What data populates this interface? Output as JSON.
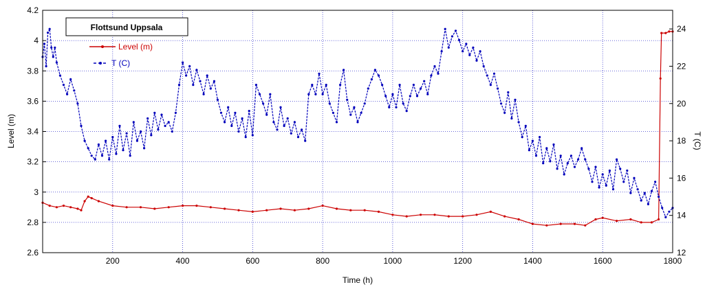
{
  "chart_data": {
    "type": "line",
    "title": "",
    "legend_title": "Flottsund Uppsala",
    "legend_position": "top-left",
    "grid": true,
    "xlabel": "Time (h)",
    "ylabel": "Level (m)",
    "y2label": "T (C)",
    "xlim": [
      0,
      1800
    ],
    "ylim": [
      2.6,
      4.2
    ],
    "y2lim": [
      12,
      25
    ],
    "x_ticks": [
      "200",
      "400",
      "600",
      "800",
      "1000",
      "1200",
      "1400",
      "1600",
      "1800"
    ],
    "y_ticks": [
      "2.6",
      "2.8",
      "3",
      "3.2",
      "3.4",
      "3.6",
      "3.8",
      "4",
      "4.2"
    ],
    "y2_ticks": [
      "12",
      "14",
      "16",
      "18",
      "20",
      "22",
      "24"
    ],
    "series": [
      {
        "name": "Level (m)",
        "axis": "left",
        "color": "#cc0000",
        "marker": "dot",
        "points": [
          [
            0,
            2.93
          ],
          [
            20,
            2.91
          ],
          [
            40,
            2.9
          ],
          [
            60,
            2.91
          ],
          [
            80,
            2.9
          ],
          [
            100,
            2.89
          ],
          [
            110,
            2.88
          ],
          [
            120,
            2.94
          ],
          [
            130,
            2.97
          ],
          [
            140,
            2.96
          ],
          [
            160,
            2.94
          ],
          [
            200,
            2.91
          ],
          [
            240,
            2.9
          ],
          [
            280,
            2.9
          ],
          [
            320,
            2.89
          ],
          [
            360,
            2.9
          ],
          [
            400,
            2.91
          ],
          [
            440,
            2.91
          ],
          [
            480,
            2.9
          ],
          [
            520,
            2.89
          ],
          [
            560,
            2.88
          ],
          [
            600,
            2.87
          ],
          [
            640,
            2.88
          ],
          [
            680,
            2.89
          ],
          [
            720,
            2.88
          ],
          [
            760,
            2.89
          ],
          [
            800,
            2.91
          ],
          [
            840,
            2.89
          ],
          [
            880,
            2.88
          ],
          [
            920,
            2.88
          ],
          [
            960,
            2.87
          ],
          [
            1000,
            2.85
          ],
          [
            1040,
            2.84
          ],
          [
            1080,
            2.85
          ],
          [
            1120,
            2.85
          ],
          [
            1160,
            2.84
          ],
          [
            1200,
            2.84
          ],
          [
            1240,
            2.85
          ],
          [
            1280,
            2.87
          ],
          [
            1320,
            2.84
          ],
          [
            1360,
            2.82
          ],
          [
            1400,
            2.79
          ],
          [
            1440,
            2.78
          ],
          [
            1480,
            2.79
          ],
          [
            1520,
            2.79
          ],
          [
            1550,
            2.78
          ],
          [
            1580,
            2.82
          ],
          [
            1600,
            2.83
          ],
          [
            1640,
            2.81
          ],
          [
            1680,
            2.82
          ],
          [
            1710,
            2.8
          ],
          [
            1740,
            2.8
          ],
          [
            1760,
            2.82
          ],
          [
            1765,
            3.75
          ],
          [
            1768,
            4.05
          ],
          [
            1780,
            4.05
          ],
          [
            1790,
            4.06
          ],
          [
            1800,
            4.06
          ]
        ]
      },
      {
        "name": "T (C)",
        "axis": "right",
        "color": "#0000bb",
        "marker": "dot",
        "points": [
          [
            0,
            22.5
          ],
          [
            5,
            23.2
          ],
          [
            10,
            22.0
          ],
          [
            15,
            23.8
          ],
          [
            20,
            24.0
          ],
          [
            25,
            23.0
          ],
          [
            30,
            22.5
          ],
          [
            35,
            23.0
          ],
          [
            40,
            22.2
          ],
          [
            50,
            21.5
          ],
          [
            60,
            21.0
          ],
          [
            70,
            20.5
          ],
          [
            80,
            21.3
          ],
          [
            90,
            20.7
          ],
          [
            100,
            20.0
          ],
          [
            110,
            18.8
          ],
          [
            120,
            18.0
          ],
          [
            130,
            17.6
          ],
          [
            140,
            17.2
          ],
          [
            150,
            17.0
          ],
          [
            160,
            17.8
          ],
          [
            170,
            17.2
          ],
          [
            180,
            18.0
          ],
          [
            190,
            17.0
          ],
          [
            200,
            18.2
          ],
          [
            210,
            17.3
          ],
          [
            220,
            18.8
          ],
          [
            230,
            17.5
          ],
          [
            240,
            18.4
          ],
          [
            250,
            17.2
          ],
          [
            260,
            19.0
          ],
          [
            270,
            18.0
          ],
          [
            280,
            18.5
          ],
          [
            290,
            17.6
          ],
          [
            300,
            19.2
          ],
          [
            310,
            18.3
          ],
          [
            320,
            19.5
          ],
          [
            330,
            18.6
          ],
          [
            340,
            19.4
          ],
          [
            350,
            18.8
          ],
          [
            360,
            19.0
          ],
          [
            370,
            18.5
          ],
          [
            380,
            19.5
          ],
          [
            390,
            21.0
          ],
          [
            400,
            22.2
          ],
          [
            410,
            21.5
          ],
          [
            420,
            22.0
          ],
          [
            430,
            21.0
          ],
          [
            440,
            21.8
          ],
          [
            450,
            21.2
          ],
          [
            460,
            20.5
          ],
          [
            470,
            21.5
          ],
          [
            480,
            20.8
          ],
          [
            490,
            21.2
          ],
          [
            500,
            20.2
          ],
          [
            510,
            19.5
          ],
          [
            520,
            19.0
          ],
          [
            530,
            19.8
          ],
          [
            540,
            18.8
          ],
          [
            550,
            19.5
          ],
          [
            560,
            18.5
          ],
          [
            570,
            19.2
          ],
          [
            580,
            18.2
          ],
          [
            590,
            19.6
          ],
          [
            600,
            18.3
          ],
          [
            610,
            21.0
          ],
          [
            620,
            20.5
          ],
          [
            630,
            20.0
          ],
          [
            640,
            19.4
          ],
          [
            650,
            20.5
          ],
          [
            660,
            19.0
          ],
          [
            670,
            18.6
          ],
          [
            680,
            19.8
          ],
          [
            690,
            18.8
          ],
          [
            700,
            19.2
          ],
          [
            710,
            18.4
          ],
          [
            720,
            19.0
          ],
          [
            730,
            18.2
          ],
          [
            740,
            18.6
          ],
          [
            750,
            18.0
          ],
          [
            760,
            20.5
          ],
          [
            770,
            21.0
          ],
          [
            780,
            20.5
          ],
          [
            790,
            21.6
          ],
          [
            800,
            20.5
          ],
          [
            810,
            21.0
          ],
          [
            820,
            20.0
          ],
          [
            830,
            19.5
          ],
          [
            840,
            19.0
          ],
          [
            850,
            21.0
          ],
          [
            860,
            21.8
          ],
          [
            870,
            20.2
          ],
          [
            880,
            19.4
          ],
          [
            890,
            19.8
          ],
          [
            900,
            19.0
          ],
          [
            910,
            19.5
          ],
          [
            920,
            20.0
          ],
          [
            930,
            20.8
          ],
          [
            940,
            21.3
          ],
          [
            950,
            21.8
          ],
          [
            960,
            21.5
          ],
          [
            970,
            21.0
          ],
          [
            980,
            20.4
          ],
          [
            990,
            19.8
          ],
          [
            1000,
            20.5
          ],
          [
            1010,
            19.8
          ],
          [
            1020,
            21.0
          ],
          [
            1030,
            20.0
          ],
          [
            1040,
            19.6
          ],
          [
            1050,
            20.4
          ],
          [
            1060,
            21.0
          ],
          [
            1070,
            20.4
          ],
          [
            1080,
            20.8
          ],
          [
            1090,
            21.2
          ],
          [
            1100,
            20.5
          ],
          [
            1110,
            21.5
          ],
          [
            1120,
            22.0
          ],
          [
            1130,
            21.6
          ],
          [
            1140,
            22.8
          ],
          [
            1150,
            24.0
          ],
          [
            1160,
            23.0
          ],
          [
            1170,
            23.6
          ],
          [
            1180,
            23.9
          ],
          [
            1190,
            23.4
          ],
          [
            1200,
            22.8
          ],
          [
            1210,
            23.2
          ],
          [
            1220,
            22.6
          ],
          [
            1230,
            23.0
          ],
          [
            1240,
            22.3
          ],
          [
            1250,
            22.8
          ],
          [
            1260,
            22.0
          ],
          [
            1270,
            21.5
          ],
          [
            1280,
            21.0
          ],
          [
            1290,
            21.6
          ],
          [
            1300,
            20.8
          ],
          [
            1310,
            20.0
          ],
          [
            1320,
            19.5
          ],
          [
            1330,
            20.6
          ],
          [
            1340,
            19.2
          ],
          [
            1350,
            20.2
          ],
          [
            1360,
            19.0
          ],
          [
            1370,
            18.2
          ],
          [
            1380,
            18.8
          ],
          [
            1390,
            17.5
          ],
          [
            1400,
            18.0
          ],
          [
            1410,
            17.2
          ],
          [
            1420,
            18.2
          ],
          [
            1430,
            16.8
          ],
          [
            1440,
            17.6
          ],
          [
            1450,
            16.9
          ],
          [
            1460,
            17.8
          ],
          [
            1470,
            16.5
          ],
          [
            1480,
            17.2
          ],
          [
            1490,
            16.2
          ],
          [
            1500,
            16.8
          ],
          [
            1510,
            17.2
          ],
          [
            1520,
            16.6
          ],
          [
            1530,
            17.0
          ],
          [
            1540,
            17.6
          ],
          [
            1550,
            17.0
          ],
          [
            1560,
            16.5
          ],
          [
            1570,
            15.8
          ],
          [
            1580,
            16.6
          ],
          [
            1590,
            15.5
          ],
          [
            1600,
            16.2
          ],
          [
            1610,
            15.6
          ],
          [
            1620,
            16.4
          ],
          [
            1630,
            15.4
          ],
          [
            1640,
            17.0
          ],
          [
            1650,
            16.5
          ],
          [
            1660,
            15.8
          ],
          [
            1670,
            16.4
          ],
          [
            1680,
            15.2
          ],
          [
            1690,
            16.0
          ],
          [
            1700,
            15.4
          ],
          [
            1710,
            14.8
          ],
          [
            1720,
            15.2
          ],
          [
            1730,
            14.6
          ],
          [
            1740,
            15.3
          ],
          [
            1750,
            15.8
          ],
          [
            1760,
            15.0
          ],
          [
            1770,
            14.4
          ],
          [
            1780,
            13.9
          ],
          [
            1790,
            14.2
          ],
          [
            1800,
            14.4
          ]
        ]
      }
    ]
  }
}
